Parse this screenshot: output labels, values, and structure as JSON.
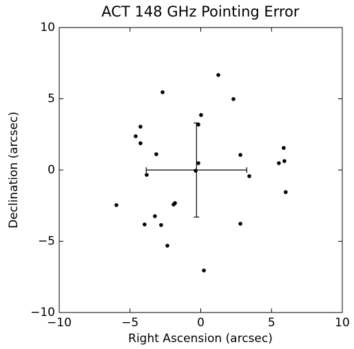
{
  "chart_data": {
    "type": "scatter",
    "title": "ACT 148 GHz Pointing Error",
    "x_label": "Right Ascension (arcsec)",
    "y_label": "Declination (arcsec)",
    "x": [
      1.24,
      -2.7,
      2.31,
      0.02,
      -4.26,
      -0.17,
      -4.6,
      -4.26,
      -3.14,
      2.8,
      5.86,
      5.91,
      5.52,
      -0.17,
      -0.36,
      -3.82,
      3.43,
      6.0,
      -5.96,
      -1.82,
      -1.92,
      -3.24,
      -3.97,
      -2.8,
      2.8,
      -2.36,
      0.22
    ],
    "values": [
      6.67,
      5.46,
      4.98,
      3.86,
      3.04,
      3.19,
      2.37,
      1.88,
      1.11,
      1.06,
      1.55,
      0.63,
      0.48,
      0.48,
      -0.05,
      -0.34,
      -0.43,
      -1.55,
      -2.46,
      -2.32,
      -2.42,
      -3.24,
      -3.82,
      -3.86,
      -3.77,
      -5.31,
      -7.05
    ],
    "color": "#000000",
    "error_bar": {
      "x": -0.3,
      "y": 0,
      "xerr": 3.55,
      "yerr": 3.3
    },
    "xlim": [
      -10,
      10
    ],
    "ylim": [
      -10,
      10
    ],
    "xticks": [
      {
        "value": -10,
        "label": "−10"
      },
      {
        "value": -5,
        "label": "−5"
      },
      0,
      5,
      10
    ],
    "yticks": [
      {
        "value": -10,
        "label": "−10"
      },
      {
        "value": -5,
        "label": "−5"
      },
      0,
      5,
      10
    ],
    "grid": false
  }
}
